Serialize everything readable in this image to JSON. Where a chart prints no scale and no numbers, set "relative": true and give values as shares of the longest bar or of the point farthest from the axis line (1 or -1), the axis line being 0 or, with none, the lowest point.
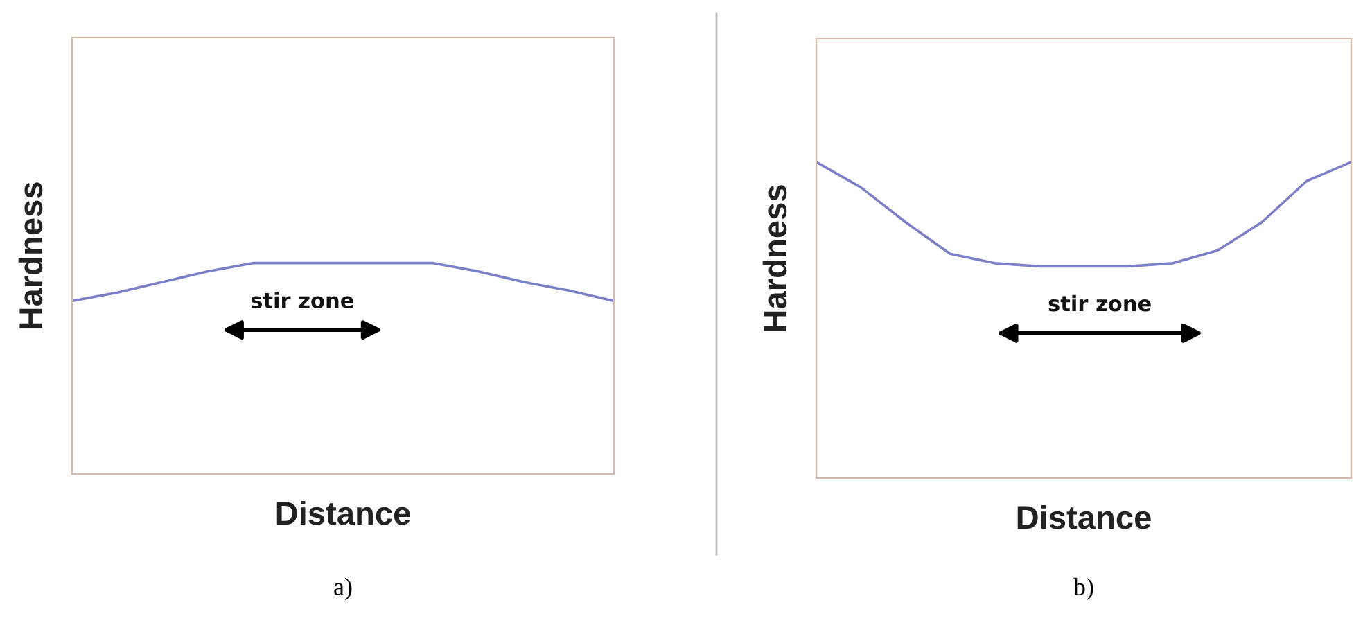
{
  "chart_data": [
    {
      "type": "line",
      "relative": true,
      "xlabel": "Distance",
      "ylabel": "Hardness",
      "tick_labels": false,
      "grid": false,
      "legend": false,
      "categories": [
        null,
        null,
        null,
        null,
        null,
        null,
        null,
        null,
        null,
        null,
        null,
        null,
        null
      ],
      "series": [
        {
          "color": "#7b7fc8",
          "values": [
            0.82,
            0.86,
            0.91,
            0.96,
            1,
            1,
            1,
            1,
            1,
            0.96,
            0.91,
            0.87,
            0.82
          ]
        }
      ],
      "annotations": [
        "stir zone",
        "a)"
      ]
    },
    {
      "type": "line",
      "relative": true,
      "xlabel": "Distance",
      "ylabel": "Hardness",
      "tick_labels": false,
      "grid": false,
      "legend": false,
      "categories": [
        null,
        null,
        null,
        null,
        null,
        null,
        null,
        null,
        null,
        null,
        null,
        null,
        null
      ],
      "series": [
        {
          "color": "#7b7fc8",
          "values": [
            1,
            0.92,
            0.81,
            0.71,
            0.68,
            0.67,
            0.67,
            0.67,
            0.68,
            0.72,
            0.81,
            0.94,
            1
          ]
        }
      ],
      "annotations": [
        "stir zone",
        "b)"
      ]
    }
  ]
}
